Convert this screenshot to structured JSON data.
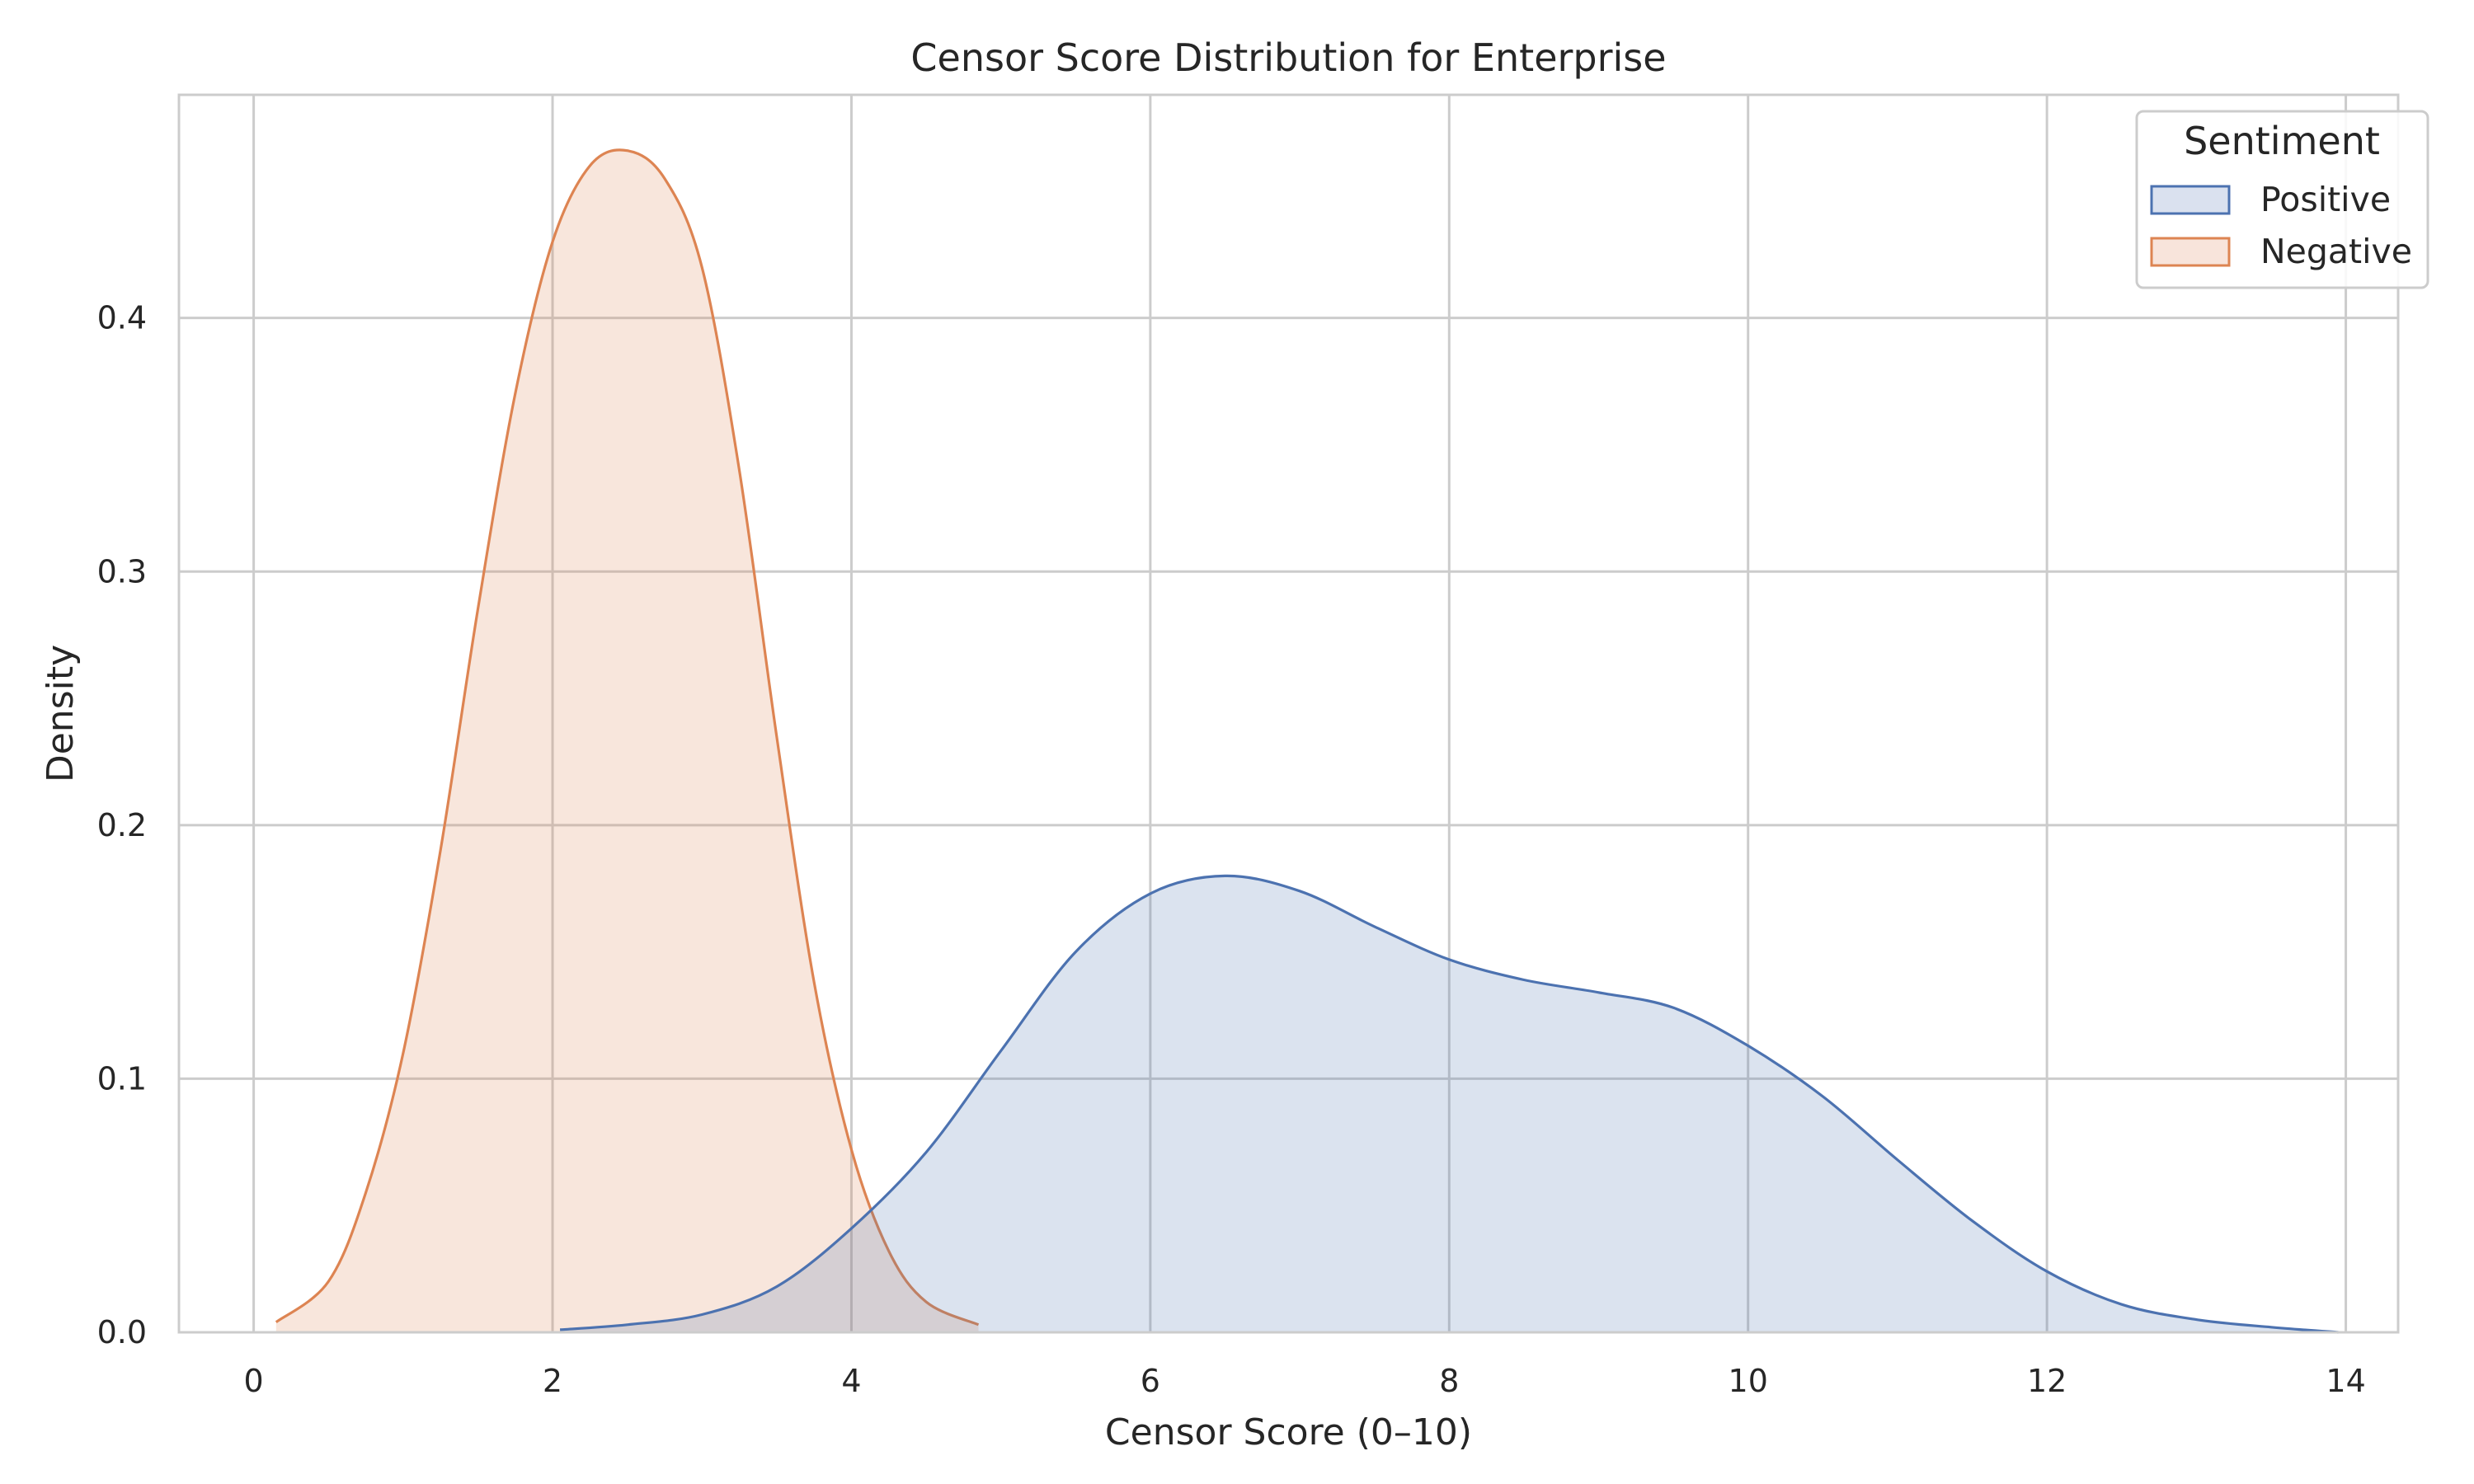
{
  "chart_data": {
    "type": "area",
    "title": "Censor Score Distribution for Enterprise",
    "xlabel": "Censor Score (0–10)",
    "ylabel": "Density",
    "xlim": [
      -0.5,
      14.35
    ],
    "ylim": [
      0,
      0.488
    ],
    "x_ticks": [
      0,
      2,
      4,
      6,
      8,
      10,
      12,
      14
    ],
    "y_ticks": [
      0.0,
      0.1,
      0.2,
      0.3,
      0.4
    ],
    "x_tick_labels": [
      "0",
      "2",
      "4",
      "6",
      "8",
      "10",
      "12",
      "14"
    ],
    "y_tick_labels": [
      "0.0",
      "0.1",
      "0.2",
      "0.3",
      "0.4"
    ],
    "grid": true,
    "legend": {
      "title": "Sentiment",
      "position": "top-right",
      "entries": [
        "Positive",
        "Negative"
      ]
    },
    "series": [
      {
        "name": "Positive",
        "color": "#4c72b0",
        "fill": "#dae1ef",
        "x": [
          2.05,
          2.5,
          3.0,
          3.5,
          4.0,
          4.5,
          5.0,
          5.5,
          6.0,
          6.5,
          7.0,
          7.5,
          8.0,
          8.5,
          9.0,
          9.5,
          10.0,
          10.5,
          11.0,
          11.5,
          12.0,
          12.5,
          13.0,
          13.5,
          13.95
        ],
        "y": [
          0.001,
          0.003,
          0.007,
          0.018,
          0.041,
          0.071,
          0.111,
          0.15,
          0.173,
          0.18,
          0.174,
          0.16,
          0.147,
          0.139,
          0.134,
          0.128,
          0.113,
          0.093,
          0.068,
          0.044,
          0.024,
          0.011,
          0.005,
          0.002,
          0.0
        ]
      },
      {
        "name": "Negative",
        "color": "#dd8452",
        "fill": "#f8e4db",
        "x": [
          0.15,
          0.5,
          0.75,
          1.0,
          1.25,
          1.5,
          1.75,
          2.0,
          2.25,
          2.5,
          2.75,
          3.0,
          3.25,
          3.5,
          3.75,
          4.0,
          4.25,
          4.5,
          4.85
        ],
        "y": [
          0.004,
          0.02,
          0.055,
          0.11,
          0.19,
          0.285,
          0.37,
          0.43,
          0.46,
          0.466,
          0.455,
          0.42,
          0.34,
          0.235,
          0.138,
          0.072,
          0.032,
          0.012,
          0.003
        ]
      }
    ]
  }
}
